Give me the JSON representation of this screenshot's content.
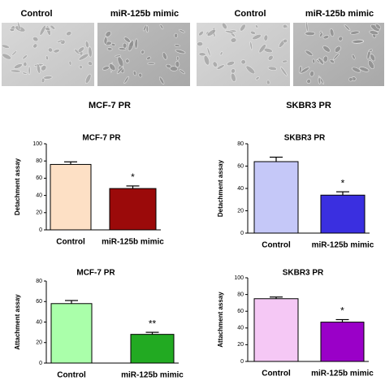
{
  "image_labels": [
    "Control",
    "miR-125b mimic",
    "Control",
    "miR-125b mimic"
  ],
  "panel_labels": [
    "MCF-7 PR",
    "SKBR3 PR"
  ],
  "chart_data": [
    {
      "type": "bar",
      "title": "MCF-7 PR",
      "ylabel": "Detachment assay",
      "categories": [
        "Control",
        "miR-125b mimic"
      ],
      "values": [
        76,
        48
      ],
      "errors": [
        3,
        3
      ],
      "colors": [
        "#fde0c5",
        "#9b0a0a"
      ],
      "annotation": "*",
      "ylim": [
        0,
        100
      ],
      "yticks": [
        0,
        20,
        40,
        60,
        80,
        100
      ]
    },
    {
      "type": "bar",
      "title": "SKBR3 PR",
      "ylabel": "Detachment assay",
      "categories": [
        "Control",
        "miR-125b mimic"
      ],
      "values": [
        64,
        34
      ],
      "errors": [
        4,
        3
      ],
      "colors": [
        "#c5c8f8",
        "#3a2fe0"
      ],
      "annotation": "*",
      "ylim": [
        0,
        80
      ],
      "yticks": [
        0,
        20,
        40,
        60,
        80
      ]
    },
    {
      "type": "bar",
      "title": "MCF-7 PR",
      "ylabel": "Attachment assay",
      "categories": [
        "Control",
        "miR-125b mimic"
      ],
      "values": [
        58,
        28
      ],
      "errors": [
        3,
        2
      ],
      "colors": [
        "#aaffaa",
        "#22aa22"
      ],
      "annotation": "**",
      "ylim": [
        0,
        80
      ],
      "yticks": [
        0,
        20,
        40,
        60,
        80
      ]
    },
    {
      "type": "bar",
      "title": "SKBR3 PR",
      "ylabel": "Attachment assay",
      "categories": [
        "Control",
        "miR-125b mimic"
      ],
      "values": [
        75,
        47
      ],
      "errors": [
        2,
        3
      ],
      "colors": [
        "#f5c8f5",
        "#9a00c8"
      ],
      "annotation": "*",
      "ylim": [
        0,
        100
      ],
      "yticks": [
        0,
        20,
        40,
        60,
        80,
        100
      ]
    }
  ]
}
